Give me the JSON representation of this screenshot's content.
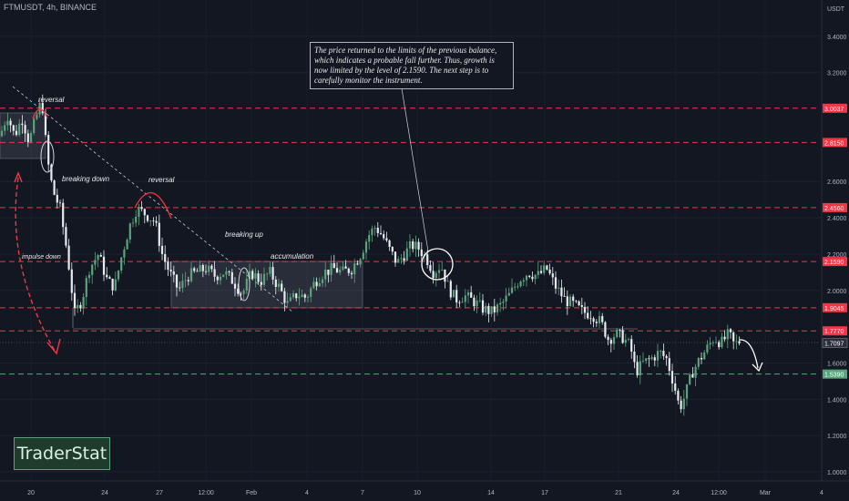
{
  "symbol": "FTMUSDT, 4h, BINANCE",
  "currency": "USDT",
  "note": "The price returned to the limits of the previous balance, which indicates a probable fall further. Thus, growth is now limited by the level of 2.1590. The next step is to carefully monitor the instrument.",
  "brand": "TraderStat",
  "colors": {
    "background": "#131722",
    "up": "#5aa47d",
    "down": "#e6ecef",
    "resistance": "#f23645",
    "support": "#5aa47d"
  },
  "annotations": [
    "reversal",
    "breaking down",
    "reversal",
    "impulse down",
    "breaking up",
    "accumulation"
  ],
  "chart_data": {
    "type": "candlestick",
    "y_ticks": [
      "3.4000",
      "3.2000",
      "2.6000",
      "2.4000",
      "2.2000",
      "2.0000",
      "1.6000",
      "1.4000",
      "1.2000",
      "1.0000"
    ],
    "x_ticks": [
      "20",
      "24",
      "27",
      "12:00",
      "Feb",
      "4",
      "7",
      "10",
      "14",
      "17",
      "21",
      "24",
      "12:00",
      "Mar",
      "4"
    ],
    "ylim": [
      0.95,
      3.6
    ],
    "levels": [
      {
        "label": "3.0037",
        "value": 3.0037,
        "style": "resistance"
      },
      {
        "label": "2.8150",
        "value": 2.815,
        "style": "resistance"
      },
      {
        "label": "2.4560",
        "value": 2.456,
        "style": "resistance"
      },
      {
        "label": "2.1590",
        "value": 2.159,
        "style": "resistance"
      },
      {
        "label": "1.9045",
        "value": 1.9045,
        "style": "resistance"
      },
      {
        "label": "1.7770",
        "value": 1.777,
        "style": "resistance"
      },
      {
        "label": "1.5390",
        "value": 1.539,
        "style": "support"
      }
    ],
    "last_price": {
      "label": "1.7097",
      "value": 1.7097
    },
    "path": [
      [
        0,
        2.85
      ],
      [
        8,
        2.97
      ],
      [
        16,
        2.85
      ],
      [
        24,
        2.95
      ],
      [
        32,
        2.82
      ],
      [
        40,
        2.96
      ],
      [
        46,
        3.05
      ],
      [
        52,
        2.72
      ],
      [
        58,
        2.55
      ],
      [
        66,
        2.45
      ],
      [
        74,
        2.2
      ],
      [
        82,
        1.87
      ],
      [
        90,
        1.95
      ],
      [
        98,
        2.12
      ],
      [
        108,
        2.2
      ],
      [
        118,
        2.05
      ],
      [
        126,
        2.02
      ],
      [
        134,
        2.2
      ],
      [
        142,
        2.35
      ],
      [
        150,
        2.45
      ],
      [
        160,
        2.42
      ],
      [
        170,
        2.38
      ],
      [
        178,
        2.2
      ],
      [
        186,
        2.1
      ],
      [
        196,
        2.0
      ],
      [
        206,
        2.08
      ],
      [
        216,
        2.1
      ],
      [
        226,
        2.12
      ],
      [
        236,
        2.08
      ],
      [
        246,
        2.1
      ],
      [
        256,
        2.05
      ],
      [
        266,
        1.98
      ],
      [
        276,
        2.1
      ],
      [
        286,
        2.05
      ],
      [
        296,
        2.1
      ],
      [
        306,
        2.02
      ],
      [
        316,
        1.92
      ],
      [
        326,
        1.98
      ],
      [
        336,
        1.96
      ],
      [
        346,
        2.05
      ],
      [
        356,
        2.1
      ],
      [
        366,
        2.12
      ],
      [
        376,
        2.1
      ],
      [
        386,
        2.12
      ],
      [
        396,
        2.2
      ],
      [
        404,
        2.3
      ],
      [
        412,
        2.35
      ],
      [
        420,
        2.3
      ],
      [
        428,
        2.22
      ],
      [
        436,
        2.15
      ],
      [
        444,
        2.2
      ],
      [
        452,
        2.25
      ],
      [
        460,
        2.23
      ],
      [
        468,
        2.18
      ],
      [
        476,
        2.1
      ],
      [
        484,
        2.14
      ],
      [
        492,
        2.02
      ],
      [
        500,
        1.95
      ],
      [
        510,
        1.97
      ],
      [
        520,
        1.94
      ],
      [
        530,
        1.9
      ],
      [
        540,
        1.88
      ],
      [
        550,
        1.92
      ],
      [
        560,
        1.98
      ],
      [
        570,
        2.06
      ],
      [
        580,
        2.1
      ],
      [
        590,
        2.08
      ],
      [
        600,
        2.12
      ],
      [
        610,
        2.02
      ],
      [
        620,
        1.95
      ],
      [
        630,
        1.92
      ],
      [
        640,
        1.88
      ],
      [
        650,
        1.87
      ],
      [
        660,
        1.82
      ],
      [
        668,
        1.73
      ],
      [
        676,
        1.76
      ],
      [
        684,
        1.74
      ],
      [
        692,
        1.69
      ],
      [
        698,
        1.55
      ],
      [
        706,
        1.6
      ],
      [
        714,
        1.62
      ],
      [
        724,
        1.66
      ],
      [
        732,
        1.62
      ],
      [
        740,
        1.48
      ],
      [
        746,
        1.35
      ],
      [
        752,
        1.42
      ],
      [
        760,
        1.55
      ],
      [
        768,
        1.62
      ],
      [
        776,
        1.68
      ],
      [
        784,
        1.74
      ],
      [
        792,
        1.71
      ],
      [
        800,
        1.76
      ],
      [
        806,
        1.7
      ],
      [
        812,
        1.72
      ]
    ]
  }
}
